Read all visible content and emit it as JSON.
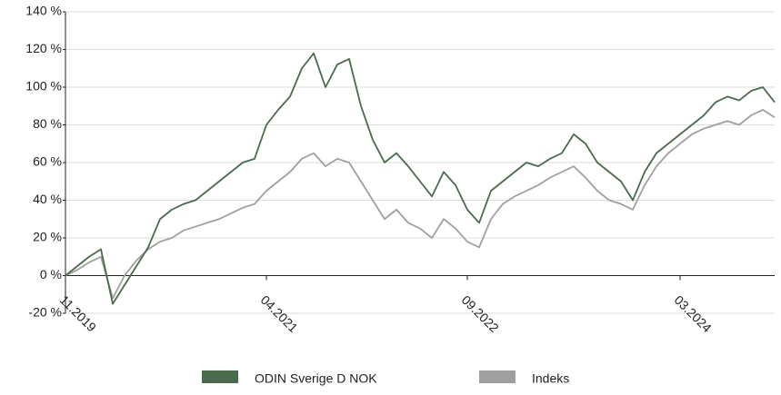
{
  "chart_data": {
    "type": "line",
    "categories": [
      "11.2019",
      null,
      null,
      null,
      null,
      null,
      null,
      null,
      null,
      null,
      null,
      null,
      null,
      null,
      null,
      null,
      null,
      "04.2021",
      null,
      null,
      null,
      null,
      null,
      null,
      null,
      null,
      null,
      null,
      null,
      null,
      null,
      null,
      null,
      null,
      "09.2022",
      null,
      null,
      null,
      null,
      null,
      null,
      null,
      null,
      null,
      null,
      null,
      null,
      null,
      null,
      null,
      null,
      null,
      "03.2024",
      null,
      null,
      null,
      null,
      null,
      null,
      null,
      null
    ],
    "series": [
      {
        "name": "ODIN Sverige D NOK",
        "color": "#4a6b4e",
        "values": [
          0,
          5,
          10,
          14,
          -15,
          -5,
          5,
          15,
          30,
          35,
          38,
          40,
          45,
          50,
          55,
          60,
          62,
          80,
          88,
          95,
          110,
          118,
          100,
          112,
          115,
          90,
          72,
          60,
          65,
          58,
          50,
          42,
          55,
          48,
          35,
          28,
          45,
          50,
          55,
          60,
          58,
          62,
          65,
          75,
          70,
          60,
          55,
          50,
          40,
          55,
          65,
          70,
          75,
          80,
          85,
          92,
          95,
          93,
          98,
          100,
          92
        ]
      },
      {
        "name": "Indeks",
        "color": "#a0a0a0",
        "values": [
          0,
          3,
          7,
          10,
          -12,
          0,
          8,
          14,
          18,
          20,
          24,
          26,
          28,
          30,
          33,
          36,
          38,
          45,
          50,
          55,
          62,
          65,
          58,
          62,
          60,
          50,
          40,
          30,
          35,
          28,
          25,
          20,
          30,
          25,
          18,
          15,
          30,
          38,
          42,
          45,
          48,
          52,
          55,
          58,
          52,
          45,
          40,
          38,
          35,
          48,
          58,
          65,
          70,
          75,
          78,
          80,
          82,
          80,
          85,
          88,
          84
        ]
      }
    ],
    "ylim": [
      -20,
      140
    ],
    "yticks": [
      {
        "value": -20,
        "label": "-20 %"
      },
      {
        "value": 0,
        "label": "0 %"
      },
      {
        "value": 20,
        "label": "20 %"
      },
      {
        "value": 40,
        "label": "40 %"
      },
      {
        "value": 60,
        "label": "60 %"
      },
      {
        "value": 80,
        "label": "80 %"
      },
      {
        "value": 100,
        "label": "100 %"
      },
      {
        "value": 120,
        "label": "120 %"
      },
      {
        "value": 140,
        "label": "140 %"
      }
    ],
    "grid": true
  }
}
